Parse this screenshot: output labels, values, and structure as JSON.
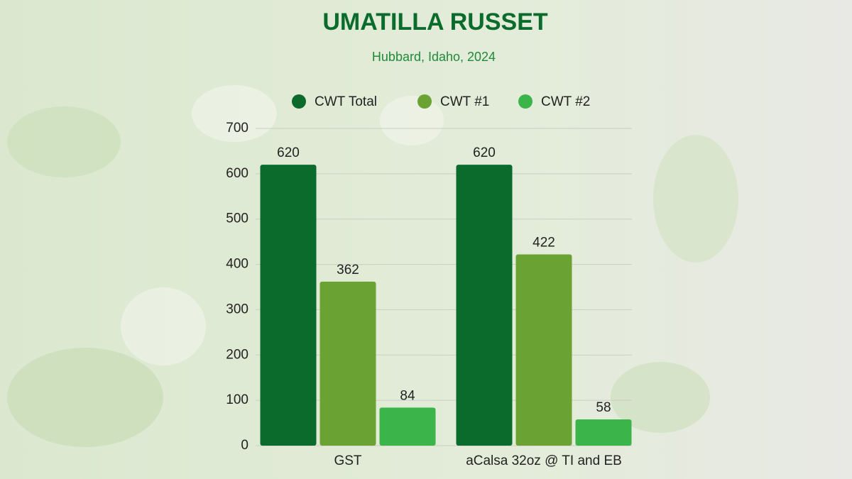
{
  "chart_data": {
    "type": "bar",
    "title": "UMATILLA RUSSET",
    "subtitle": "Hubbard, Idaho, 2024",
    "categories": [
      "GST",
      "aCalsa 32oz @ TI and EB"
    ],
    "series": [
      {
        "name": "CWT Total",
        "color": "#0b6b2c",
        "values": [
          620,
          620
        ]
      },
      {
        "name": "CWT #1",
        "color": "#6aa333",
        "values": [
          362,
          422
        ]
      },
      {
        "name": "CWT #2",
        "color": "#3bb44a",
        "values": [
          84,
          58
        ]
      }
    ],
    "ylim": [
      0,
      700
    ],
    "yticks": [
      0,
      100,
      200,
      300,
      400,
      500,
      600,
      700
    ],
    "grid": true
  }
}
